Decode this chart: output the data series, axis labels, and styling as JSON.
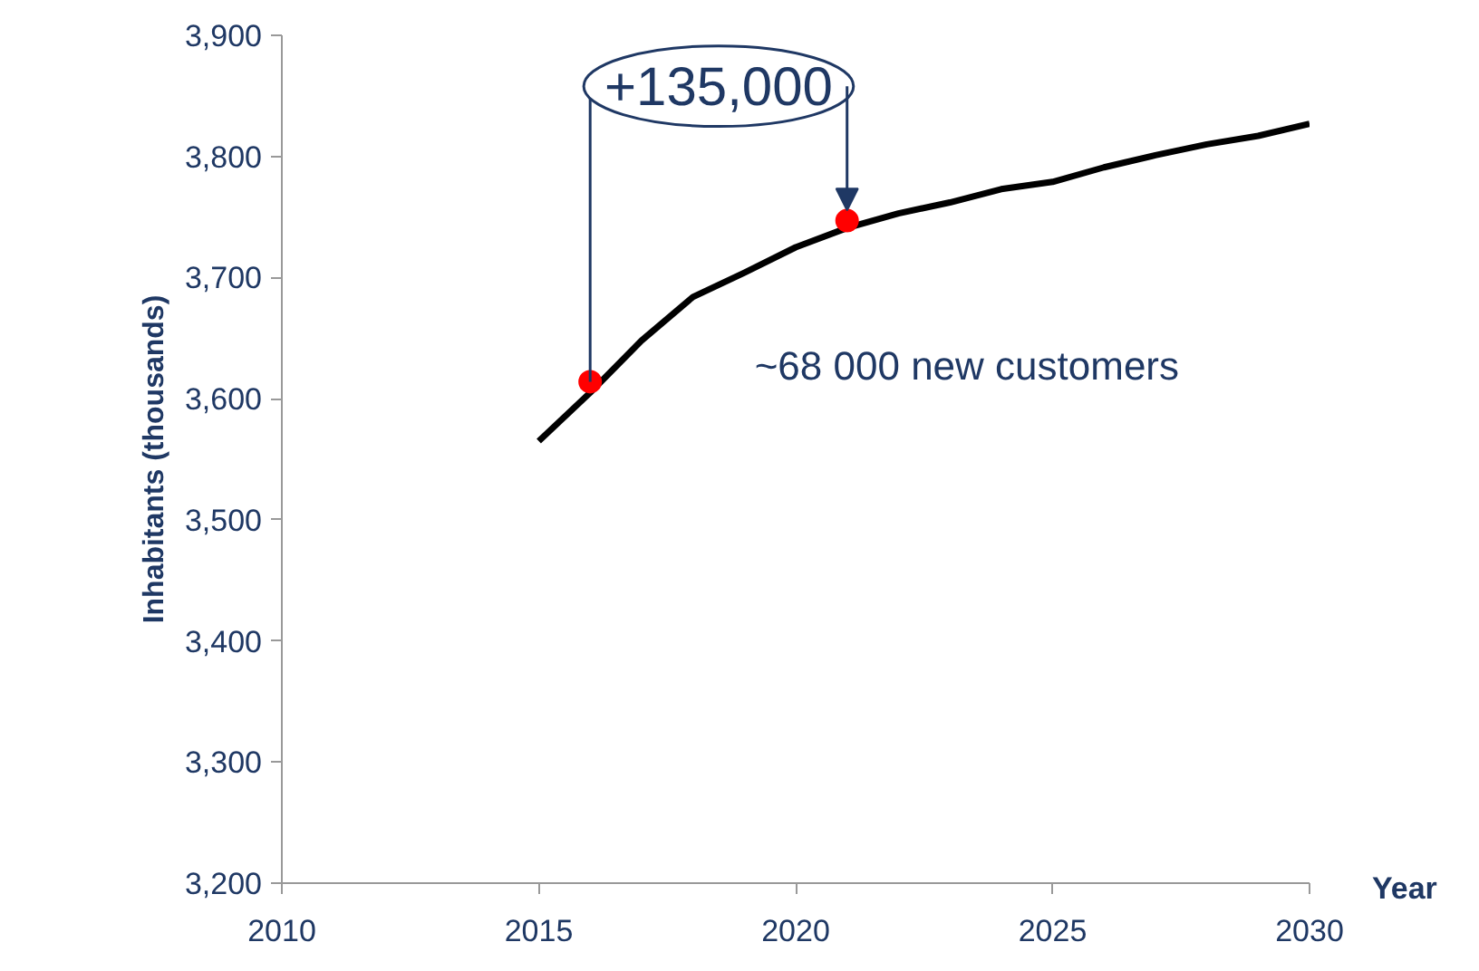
{
  "chart_data": {
    "type": "line",
    "xlabel": "Year",
    "ylabel": "Inhabitants (thousands)",
    "xlim": [
      2010,
      2030
    ],
    "xticks": [
      2010,
      2015,
      2020,
      2025,
      2030
    ],
    "ylim": [
      3200,
      3900
    ],
    "yticks": [
      {
        "value": 3200,
        "label": "3,200"
      },
      {
        "value": 3300,
        "label": "3,300"
      },
      {
        "value": 3400,
        "label": "3,400"
      },
      {
        "value": 3500,
        "label": "3,500"
      },
      {
        "value": 3600,
        "label": "3,600"
      },
      {
        "value": 3700,
        "label": "3,700"
      },
      {
        "value": 3800,
        "label": "3,800"
      },
      {
        "value": 3900,
        "label": "3,900"
      }
    ],
    "grid": false,
    "series": [
      {
        "color": "#000000",
        "x": [
          2015,
          2016,
          2017,
          2018,
          2019,
          2020,
          2021,
          2022,
          2023,
          2024,
          2025,
          2026,
          2027,
          2028,
          2029,
          2030
        ],
        "values": [
          3565,
          3605,
          3648,
          3684,
          3704,
          3725,
          3741,
          3753,
          3762,
          3773,
          3779,
          3791,
          3801,
          3810,
          3817,
          3827
        ]
      },
      {
        "type": "scatter",
        "color": "#ff0000",
        "x": [
          2016,
          2021
        ],
        "values": [
          3614,
          3747
        ]
      }
    ],
    "annotations": [
      {
        "text": "+135,000",
        "x": 2021,
        "y": 3747
      },
      "~68 000 new customers"
    ]
  }
}
